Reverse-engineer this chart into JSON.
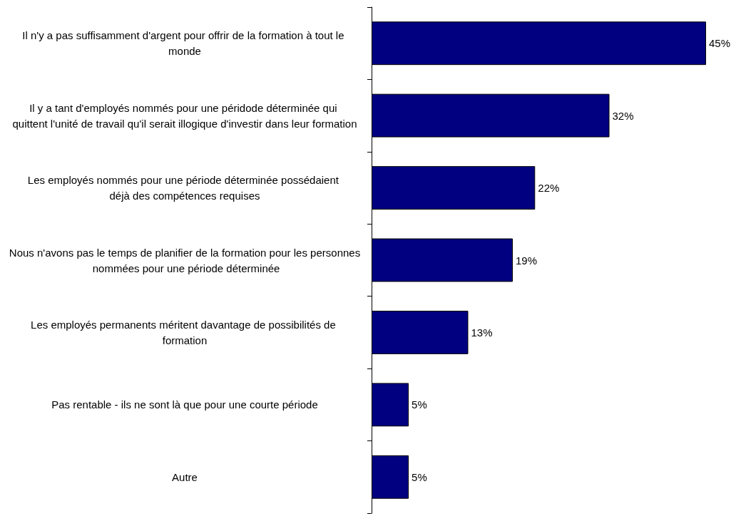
{
  "chart_data": {
    "type": "bar",
    "orientation": "horizontal",
    "color": "#000080",
    "categories": [
      "Il n'y a pas suffisamment d'argent pour offrir de la formation à tout le monde",
      "Il y a tant d'employés nommés pour une péridode déterminée qui quittent l'unité de travail qu'il serait illogique d'investir dans leur formation",
      "Les employés nommés pour une période déterminée possédaient déjà des compétences requises",
      "Nous n'avons pas le temps de planifier de la formation pour les personnes nommées pour une période déterminée",
      "Les employés permanents méritent davantage de possibilités de formation",
      "Pas rentable - ils ne sont là que pour une courte période",
      "Autre"
    ],
    "values": [
      45,
      32,
      22,
      19,
      13,
      5,
      5
    ],
    "value_labels": [
      "45%",
      "32%",
      "22%",
      "19%",
      "13%",
      "5%",
      "5%"
    ]
  }
}
